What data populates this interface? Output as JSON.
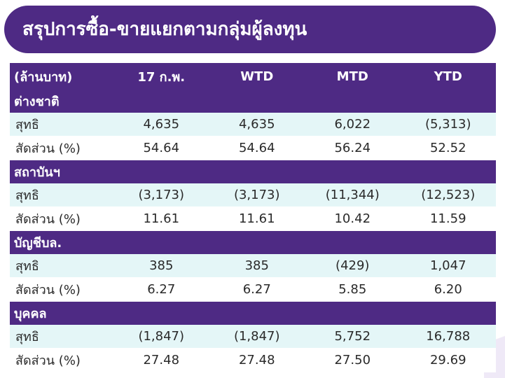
{
  "title": "สรุปการซื้อ-ขายแยกตามกลุ่มผู้ลงทุน",
  "colors": {
    "header_purple": "#4e2a84",
    "row_teal": "#e4f6f7",
    "text_dark": "#2a2a2a"
  },
  "table": {
    "headers": [
      "(ล้านบาท)",
      "17 ก.พ.",
      "WTD",
      "MTD",
      "YTD"
    ],
    "groups": [
      {
        "name": "ต่างชาติ",
        "rows": [
          {
            "label": "สุทธิ",
            "values": [
              "4,635",
              "4,635",
              "6,022",
              "(5,313)"
            ]
          },
          {
            "label": "สัดส่วน (%)",
            "values": [
              "54.64",
              "54.64",
              "56.24",
              "52.52"
            ]
          }
        ]
      },
      {
        "name": "สถาบันฯ",
        "rows": [
          {
            "label": "สุทธิ",
            "values": [
              "(3,173)",
              "(3,173)",
              "(11,344)",
              "(12,523)"
            ]
          },
          {
            "label": "สัดส่วน (%)",
            "values": [
              "11.61",
              "11.61",
              "10.42",
              "11.59"
            ]
          }
        ]
      },
      {
        "name": "บัญชีบล.",
        "rows": [
          {
            "label": "สุทธิ",
            "values": [
              "385",
              "385",
              "(429)",
              "1,047"
            ]
          },
          {
            "label": "สัดส่วน (%)",
            "values": [
              "6.27",
              "6.27",
              "5.85",
              "6.20"
            ]
          }
        ]
      },
      {
        "name": "บุคคล",
        "rows": [
          {
            "label": "สุทธิ",
            "values": [
              "(1,847)",
              "(1,847)",
              "5,752",
              "16,788"
            ]
          },
          {
            "label": "สัดส่วน (%)",
            "values": [
              "27.48",
              "27.48",
              "27.50",
              "29.69"
            ]
          }
        ]
      }
    ]
  }
}
